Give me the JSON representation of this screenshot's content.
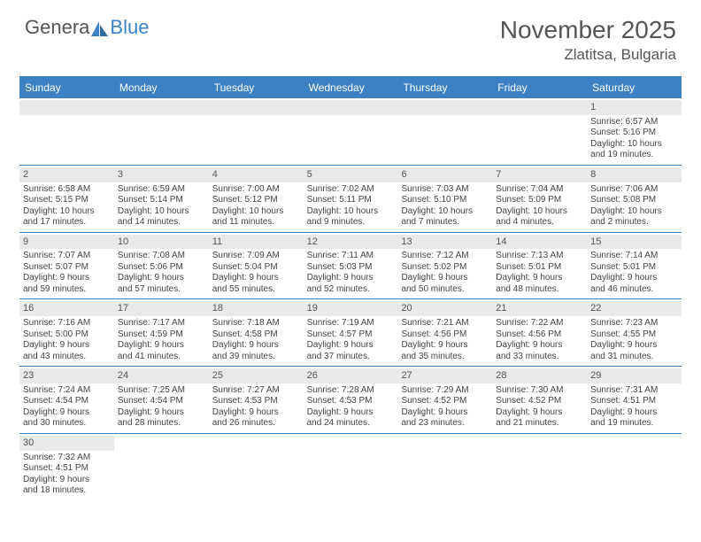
{
  "logo": {
    "text1": "Genera",
    "text2": "Blue"
  },
  "title": "November 2025",
  "location": "Zlatitsa, Bulgaria",
  "colors": {
    "accent": "#3b81c4",
    "daynum_bg": "#e7e9eb",
    "text": "#444444",
    "header_text": "#555555",
    "white": "#ffffff"
  },
  "day_headers": [
    "Sunday",
    "Monday",
    "Tuesday",
    "Wednesday",
    "Thursday",
    "Friday",
    "Saturday"
  ],
  "weeks": [
    [
      null,
      null,
      null,
      null,
      null,
      null,
      {
        "n": "1",
        "sr": "Sunrise: 6:57 AM",
        "ss": "Sunset: 5:16 PM",
        "dl1": "Daylight: 10 hours",
        "dl2": "and 19 minutes."
      }
    ],
    [
      {
        "n": "2",
        "sr": "Sunrise: 6:58 AM",
        "ss": "Sunset: 5:15 PM",
        "dl1": "Daylight: 10 hours",
        "dl2": "and 17 minutes."
      },
      {
        "n": "3",
        "sr": "Sunrise: 6:59 AM",
        "ss": "Sunset: 5:14 PM",
        "dl1": "Daylight: 10 hours",
        "dl2": "and 14 minutes."
      },
      {
        "n": "4",
        "sr": "Sunrise: 7:00 AM",
        "ss": "Sunset: 5:12 PM",
        "dl1": "Daylight: 10 hours",
        "dl2": "and 11 minutes."
      },
      {
        "n": "5",
        "sr": "Sunrise: 7:02 AM",
        "ss": "Sunset: 5:11 PM",
        "dl1": "Daylight: 10 hours",
        "dl2": "and 9 minutes."
      },
      {
        "n": "6",
        "sr": "Sunrise: 7:03 AM",
        "ss": "Sunset: 5:10 PM",
        "dl1": "Daylight: 10 hours",
        "dl2": "and 7 minutes."
      },
      {
        "n": "7",
        "sr": "Sunrise: 7:04 AM",
        "ss": "Sunset: 5:09 PM",
        "dl1": "Daylight: 10 hours",
        "dl2": "and 4 minutes."
      },
      {
        "n": "8",
        "sr": "Sunrise: 7:06 AM",
        "ss": "Sunset: 5:08 PM",
        "dl1": "Daylight: 10 hours",
        "dl2": "and 2 minutes."
      }
    ],
    [
      {
        "n": "9",
        "sr": "Sunrise: 7:07 AM",
        "ss": "Sunset: 5:07 PM",
        "dl1": "Daylight: 9 hours",
        "dl2": "and 59 minutes."
      },
      {
        "n": "10",
        "sr": "Sunrise: 7:08 AM",
        "ss": "Sunset: 5:06 PM",
        "dl1": "Daylight: 9 hours",
        "dl2": "and 57 minutes."
      },
      {
        "n": "11",
        "sr": "Sunrise: 7:09 AM",
        "ss": "Sunset: 5:04 PM",
        "dl1": "Daylight: 9 hours",
        "dl2": "and 55 minutes."
      },
      {
        "n": "12",
        "sr": "Sunrise: 7:11 AM",
        "ss": "Sunset: 5:03 PM",
        "dl1": "Daylight: 9 hours",
        "dl2": "and 52 minutes."
      },
      {
        "n": "13",
        "sr": "Sunrise: 7:12 AM",
        "ss": "Sunset: 5:02 PM",
        "dl1": "Daylight: 9 hours",
        "dl2": "and 50 minutes."
      },
      {
        "n": "14",
        "sr": "Sunrise: 7:13 AM",
        "ss": "Sunset: 5:01 PM",
        "dl1": "Daylight: 9 hours",
        "dl2": "and 48 minutes."
      },
      {
        "n": "15",
        "sr": "Sunrise: 7:14 AM",
        "ss": "Sunset: 5:01 PM",
        "dl1": "Daylight: 9 hours",
        "dl2": "and 46 minutes."
      }
    ],
    [
      {
        "n": "16",
        "sr": "Sunrise: 7:16 AM",
        "ss": "Sunset: 5:00 PM",
        "dl1": "Daylight: 9 hours",
        "dl2": "and 43 minutes."
      },
      {
        "n": "17",
        "sr": "Sunrise: 7:17 AM",
        "ss": "Sunset: 4:59 PM",
        "dl1": "Daylight: 9 hours",
        "dl2": "and 41 minutes."
      },
      {
        "n": "18",
        "sr": "Sunrise: 7:18 AM",
        "ss": "Sunset: 4:58 PM",
        "dl1": "Daylight: 9 hours",
        "dl2": "and 39 minutes."
      },
      {
        "n": "19",
        "sr": "Sunrise: 7:19 AM",
        "ss": "Sunset: 4:57 PM",
        "dl1": "Daylight: 9 hours",
        "dl2": "and 37 minutes."
      },
      {
        "n": "20",
        "sr": "Sunrise: 7:21 AM",
        "ss": "Sunset: 4:56 PM",
        "dl1": "Daylight: 9 hours",
        "dl2": "and 35 minutes."
      },
      {
        "n": "21",
        "sr": "Sunrise: 7:22 AM",
        "ss": "Sunset: 4:56 PM",
        "dl1": "Daylight: 9 hours",
        "dl2": "and 33 minutes."
      },
      {
        "n": "22",
        "sr": "Sunrise: 7:23 AM",
        "ss": "Sunset: 4:55 PM",
        "dl1": "Daylight: 9 hours",
        "dl2": "and 31 minutes."
      }
    ],
    [
      {
        "n": "23",
        "sr": "Sunrise: 7:24 AM",
        "ss": "Sunset: 4:54 PM",
        "dl1": "Daylight: 9 hours",
        "dl2": "and 30 minutes."
      },
      {
        "n": "24",
        "sr": "Sunrise: 7:25 AM",
        "ss": "Sunset: 4:54 PM",
        "dl1": "Daylight: 9 hours",
        "dl2": "and 28 minutes."
      },
      {
        "n": "25",
        "sr": "Sunrise: 7:27 AM",
        "ss": "Sunset: 4:53 PM",
        "dl1": "Daylight: 9 hours",
        "dl2": "and 26 minutes."
      },
      {
        "n": "26",
        "sr": "Sunrise: 7:28 AM",
        "ss": "Sunset: 4:53 PM",
        "dl1": "Daylight: 9 hours",
        "dl2": "and 24 minutes."
      },
      {
        "n": "27",
        "sr": "Sunrise: 7:29 AM",
        "ss": "Sunset: 4:52 PM",
        "dl1": "Daylight: 9 hours",
        "dl2": "and 23 minutes."
      },
      {
        "n": "28",
        "sr": "Sunrise: 7:30 AM",
        "ss": "Sunset: 4:52 PM",
        "dl1": "Daylight: 9 hours",
        "dl2": "and 21 minutes."
      },
      {
        "n": "29",
        "sr": "Sunrise: 7:31 AM",
        "ss": "Sunset: 4:51 PM",
        "dl1": "Daylight: 9 hours",
        "dl2": "and 19 minutes."
      }
    ],
    [
      {
        "n": "30",
        "sr": "Sunrise: 7:32 AM",
        "ss": "Sunset: 4:51 PM",
        "dl1": "Daylight: 9 hours",
        "dl2": "and 18 minutes."
      },
      null,
      null,
      null,
      null,
      null,
      null
    ]
  ]
}
